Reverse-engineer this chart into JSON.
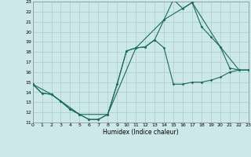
{
  "xlabel": "Humidex (Indice chaleur)",
  "xlim": [
    0,
    23
  ],
  "ylim": [
    11,
    23
  ],
  "xticks": [
    0,
    1,
    2,
    3,
    4,
    5,
    6,
    7,
    8,
    9,
    10,
    11,
    12,
    13,
    14,
    15,
    16,
    17,
    18,
    19,
    20,
    21,
    22,
    23
  ],
  "yticks": [
    11,
    12,
    13,
    14,
    15,
    16,
    17,
    18,
    19,
    20,
    21,
    22,
    23
  ],
  "bg_color": "#cce8e8",
  "grid_color": "#aacccc",
  "line_color": "#1a6b5a",
  "curve1_x": [
    0,
    1,
    2,
    3,
    4,
    5,
    6,
    7,
    8,
    9,
    10,
    11,
    12,
    13,
    14,
    15,
    16,
    17,
    18,
    19,
    20,
    21,
    22,
    23
  ],
  "curve1_y": [
    14.8,
    13.9,
    13.8,
    13.1,
    12.3,
    11.8,
    11.3,
    11.3,
    11.8,
    14.8,
    18.1,
    18.4,
    18.5,
    19.2,
    18.4,
    14.8,
    14.8,
    15.0,
    15.0,
    15.2,
    15.5,
    16.0,
    16.2,
    16.2
  ],
  "curve2_x": [
    0,
    1,
    2,
    3,
    4,
    5,
    6,
    7,
    8,
    9,
    10,
    11,
    12,
    13,
    14,
    15,
    16,
    17,
    18,
    19,
    20,
    21,
    22,
    23
  ],
  "curve2_y": [
    14.8,
    13.9,
    13.8,
    13.1,
    12.3,
    11.8,
    11.3,
    11.3,
    11.8,
    14.8,
    18.1,
    18.4,
    18.5,
    19.2,
    21.2,
    23.2,
    22.3,
    22.9,
    20.5,
    19.5,
    18.5,
    16.4,
    16.2,
    16.2
  ],
  "curve3_x": [
    0,
    2,
    5,
    8,
    11,
    14,
    17,
    20,
    22,
    23
  ],
  "curve3_y": [
    14.8,
    13.8,
    11.8,
    11.8,
    18.4,
    21.2,
    22.9,
    18.5,
    16.2,
    16.2
  ]
}
